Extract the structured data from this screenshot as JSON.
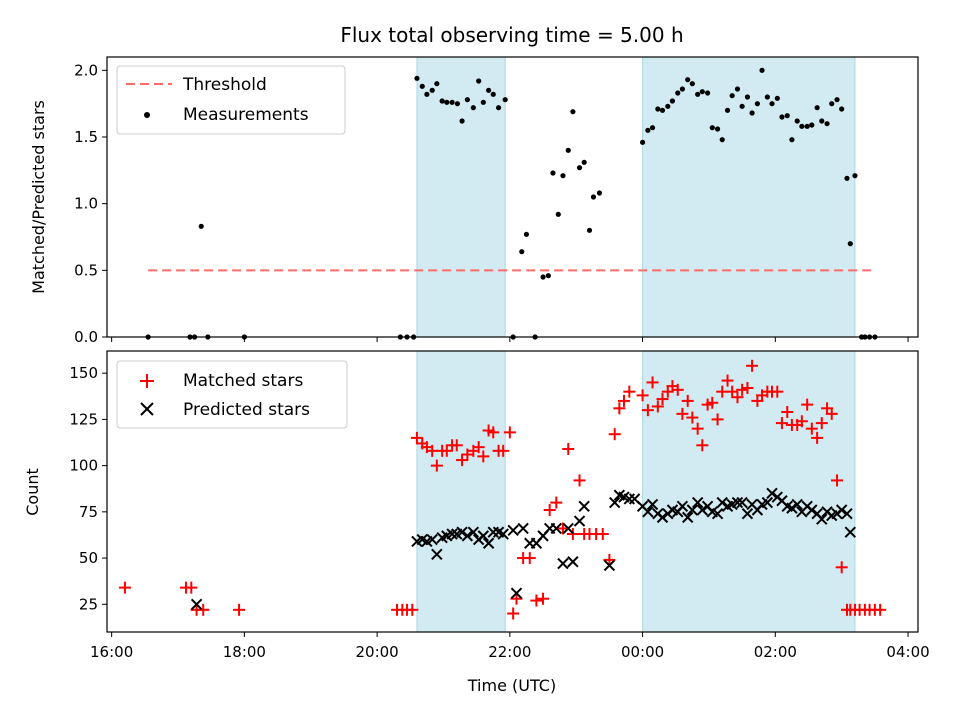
{
  "chart_data": [
    {
      "type": "scatter",
      "title": "Flux total observing time = 5.00 h",
      "xlabel": "",
      "ylabel": "Matched/Predicted stars",
      "x_unit": "time (UTC), numeric hours since 16:00 on the first day",
      "xlim": [
        15.93,
        28.15
      ],
      "ylim": [
        0.0,
        2.1
      ],
      "yticks": [
        "0.0",
        "0.5",
        "1.0",
        "1.5",
        "2.0"
      ],
      "shaded_spans": [
        [
          20.6,
          21.93
        ],
        [
          24.0,
          27.2
        ]
      ],
      "shaded_color": "#add8e6",
      "threshold": {
        "name": "Threshold",
        "value": 0.5,
        "x_range": [
          16.55,
          27.5
        ],
        "color": "#ff6b6b"
      },
      "series": [
        {
          "name": "Measurements",
          "color": "#000000",
          "x": [
            16.55,
            17.18,
            17.25,
            17.35,
            17.45,
            18.0,
            20.35,
            20.45,
            20.55,
            20.6,
            20.68,
            20.75,
            20.83,
            20.9,
            20.98,
            21.05,
            21.13,
            21.21,
            21.28,
            21.36,
            21.45,
            21.53,
            21.6,
            21.68,
            21.75,
            21.83,
            21.93,
            22.05,
            22.18,
            22.25,
            22.38,
            22.5,
            22.58,
            22.65,
            22.73,
            22.8,
            22.88,
            22.95,
            23.05,
            23.12,
            23.2,
            23.26,
            23.35,
            24.0,
            24.08,
            24.15,
            24.23,
            24.3,
            24.38,
            24.45,
            24.53,
            24.6,
            24.68,
            24.75,
            24.83,
            24.9,
            24.98,
            25.05,
            25.13,
            25.2,
            25.28,
            25.35,
            25.43,
            25.5,
            25.58,
            25.65,
            25.73,
            25.8,
            25.88,
            25.95,
            26.03,
            26.1,
            26.18,
            26.25,
            26.33,
            26.4,
            26.48,
            26.55,
            26.63,
            26.7,
            26.78,
            26.85,
            26.93,
            27.0,
            27.08,
            27.13,
            27.2,
            27.3,
            27.35,
            27.42,
            27.5
          ],
          "y": [
            0.0,
            0.0,
            0.0,
            0.83,
            0.0,
            0.0,
            0.0,
            0.0,
            0.0,
            1.94,
            1.88,
            1.82,
            1.85,
            1.9,
            1.77,
            1.76,
            1.76,
            1.75,
            1.62,
            1.78,
            1.72,
            1.92,
            1.76,
            1.85,
            1.82,
            1.72,
            1.78,
            0.0,
            0.64,
            0.77,
            0.0,
            0.45,
            0.46,
            1.23,
            0.92,
            1.21,
            1.4,
            1.69,
            1.27,
            1.31,
            0.8,
            1.05,
            1.08,
            1.46,
            1.55,
            1.57,
            1.71,
            1.7,
            1.73,
            1.77,
            1.83,
            1.86,
            1.93,
            1.9,
            1.82,
            1.84,
            1.83,
            1.57,
            1.56,
            1.48,
            1.7,
            1.81,
            1.86,
            1.73,
            1.8,
            1.68,
            1.75,
            2.0,
            1.8,
            1.75,
            1.79,
            1.65,
            1.66,
            1.48,
            1.62,
            1.58,
            1.58,
            1.59,
            1.72,
            1.62,
            1.6,
            1.75,
            1.78,
            1.71,
            1.19,
            0.7,
            1.21,
            0.0,
            0.0,
            0.0,
            0.0
          ]
        }
      ]
    },
    {
      "type": "scatter",
      "title": "",
      "xlabel": "Time (UTC)",
      "ylabel": "Count",
      "x_unit": "time (UTC), numeric hours since 16:00 on the first day",
      "xlim": [
        15.93,
        28.15
      ],
      "ylim": [
        10,
        162
      ],
      "yticks": [
        "25",
        "50",
        "75",
        "100",
        "125",
        "150"
      ],
      "xticks": [
        {
          "value": 16,
          "label": "16:00"
        },
        {
          "value": 18,
          "label": "18:00"
        },
        {
          "value": 20,
          "label": "20:00"
        },
        {
          "value": 22,
          "label": "22:00"
        },
        {
          "value": 24,
          "label": "00:00"
        },
        {
          "value": 26,
          "label": "02:00"
        },
        {
          "value": 28,
          "label": "04:00"
        }
      ],
      "shaded_spans": [
        [
          20.6,
          21.93
        ],
        [
          24.0,
          27.2
        ]
      ],
      "shaded_color": "#add8e6",
      "series": [
        {
          "name": "Matched stars",
          "marker": "plus",
          "color": "#ff0000",
          "x": [
            16.2,
            17.12,
            17.2,
            17.28,
            17.38,
            17.92,
            20.3,
            20.38,
            20.45,
            20.53,
            20.6,
            20.68,
            20.75,
            20.83,
            20.9,
            20.98,
            21.05,
            21.13,
            21.2,
            21.28,
            21.36,
            21.45,
            21.53,
            21.6,
            21.68,
            21.75,
            21.83,
            21.9,
            22.0,
            22.05,
            22.1,
            22.2,
            22.3,
            22.4,
            22.5,
            22.6,
            22.7,
            22.8,
            22.88,
            22.95,
            23.05,
            23.12,
            23.2,
            23.3,
            23.4,
            23.5,
            23.58,
            23.65,
            23.72,
            23.8,
            24.0,
            24.08,
            24.15,
            24.23,
            24.3,
            24.38,
            24.45,
            24.53,
            24.6,
            24.68,
            24.75,
            24.83,
            24.9,
            24.98,
            25.05,
            25.13,
            25.2,
            25.28,
            25.35,
            25.43,
            25.5,
            25.58,
            25.65,
            25.73,
            25.8,
            25.88,
            25.95,
            26.03,
            26.1,
            26.18,
            26.25,
            26.33,
            26.4,
            26.48,
            26.55,
            26.63,
            26.7,
            26.78,
            26.85,
            26.93,
            27.0,
            27.08,
            27.13,
            27.2,
            27.27,
            27.35,
            27.42,
            27.5,
            27.58
          ],
          "y": [
            34,
            34,
            34,
            22,
            22,
            22,
            22,
            22,
            22,
            22,
            115,
            112,
            110,
            108,
            100,
            108,
            108,
            111,
            111,
            103,
            106,
            108,
            110,
            105,
            119,
            118,
            108,
            108,
            118,
            20,
            28,
            50,
            50,
            27,
            28,
            76,
            80,
            66,
            109,
            63,
            92,
            63,
            63,
            63,
            63,
            49,
            117,
            131,
            135,
            140,
            138,
            130,
            145,
            132,
            136,
            140,
            143,
            141,
            128,
            135,
            126,
            120,
            111,
            133,
            134,
            125,
            140,
            146,
            140,
            137,
            141,
            142,
            154,
            135,
            138,
            140,
            140,
            140,
            123,
            129,
            122,
            122,
            124,
            133,
            120,
            115,
            123,
            131,
            128,
            92,
            45,
            22,
            22,
            22,
            22,
            22,
            22,
            22,
            22
          ],
          "_x_note": "matched series aligned with predicted by time index"
        },
        {
          "name": "Predicted stars",
          "marker": "x",
          "color": "#000000",
          "x": [
            17.28,
            20.6,
            20.68,
            20.75,
            20.83,
            20.9,
            20.98,
            21.05,
            21.13,
            21.2,
            21.28,
            21.36,
            21.45,
            21.53,
            21.6,
            21.68,
            21.75,
            21.83,
            21.9,
            22.05,
            22.1,
            22.2,
            22.3,
            22.4,
            22.5,
            22.6,
            22.7,
            22.8,
            22.88,
            22.95,
            23.05,
            23.12,
            23.5,
            23.58,
            23.65,
            23.72,
            23.8,
            23.88,
            24.0,
            24.08,
            24.15,
            24.23,
            24.3,
            24.38,
            24.45,
            24.53,
            24.6,
            24.68,
            24.75,
            24.83,
            24.9,
            24.98,
            25.05,
            25.13,
            25.2,
            25.28,
            25.35,
            25.43,
            25.5,
            25.58,
            25.65,
            25.73,
            25.8,
            25.88,
            25.95,
            26.03,
            26.1,
            26.18,
            26.25,
            26.33,
            26.4,
            26.48,
            26.55,
            26.63,
            26.7,
            26.78,
            26.85,
            26.93,
            27.0,
            27.08,
            27.13
          ],
          "y": [
            25,
            59,
            60,
            59,
            60,
            52,
            61,
            62,
            63,
            63,
            64,
            62,
            64,
            60,
            62,
            58,
            64,
            64,
            63,
            65,
            31,
            66,
            58,
            58,
            62,
            66,
            66,
            47,
            66,
            48,
            70,
            78,
            46,
            80,
            84,
            83,
            82,
            82,
            78,
            75,
            79,
            74,
            72,
            74,
            76,
            75,
            78,
            72,
            76,
            80,
            76,
            78,
            75,
            74,
            80,
            78,
            79,
            80,
            80,
            74,
            79,
            76,
            79,
            80,
            85,
            83,
            81,
            78,
            77,
            79,
            75,
            78,
            76,
            74,
            71,
            75,
            73,
            74,
            76,
            74,
            64
          ],
          "_note2": "trailing values"
        }
      ]
    }
  ]
}
